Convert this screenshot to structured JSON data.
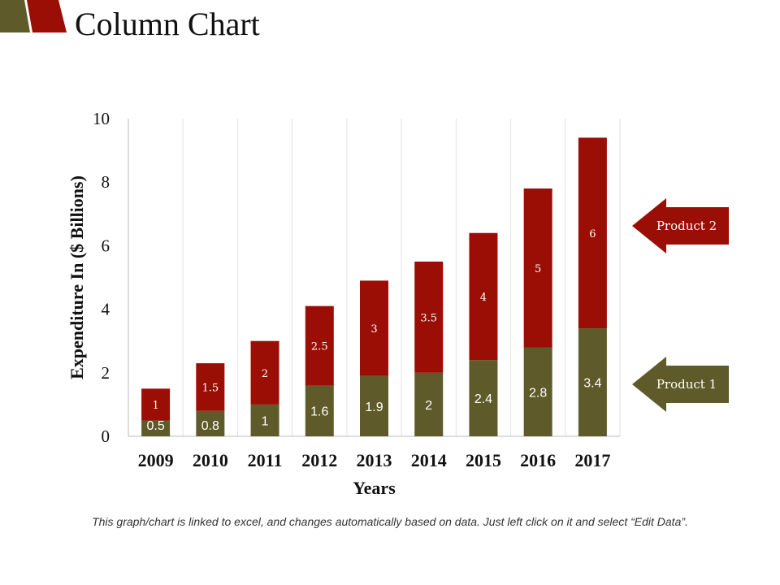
{
  "title": "Column Chart",
  "footer": "This graph/chart is linked to excel, and changes automatically based on data. Just left click on it and select “Edit Data”.",
  "colors": {
    "product1": "#5f5a29",
    "product2": "#9b0e05"
  },
  "chart_data": {
    "type": "bar",
    "stacked": true,
    "categories": [
      "2009",
      "2010",
      "2011",
      "2012",
      "2013",
      "2014",
      "2015",
      "2016",
      "2017"
    ],
    "series": [
      {
        "name": "Product 1",
        "values": [
          0.5,
          0.8,
          1,
          1.6,
          1.9,
          2,
          2.4,
          2.8,
          3.4
        ]
      },
      {
        "name": "Product 2",
        "values": [
          1,
          1.5,
          2,
          2.5,
          3,
          3.5,
          4,
          5,
          6
        ]
      }
    ],
    "xlabel": "Years",
    "ylabel": "Expenditure In ($ Billions)",
    "ylim": [
      0,
      10
    ],
    "yticks": [
      "0",
      "2",
      "4",
      "6",
      "8",
      "10"
    ],
    "legend": "right, arrow callouts",
    "grid": "vertical lines between categories"
  }
}
